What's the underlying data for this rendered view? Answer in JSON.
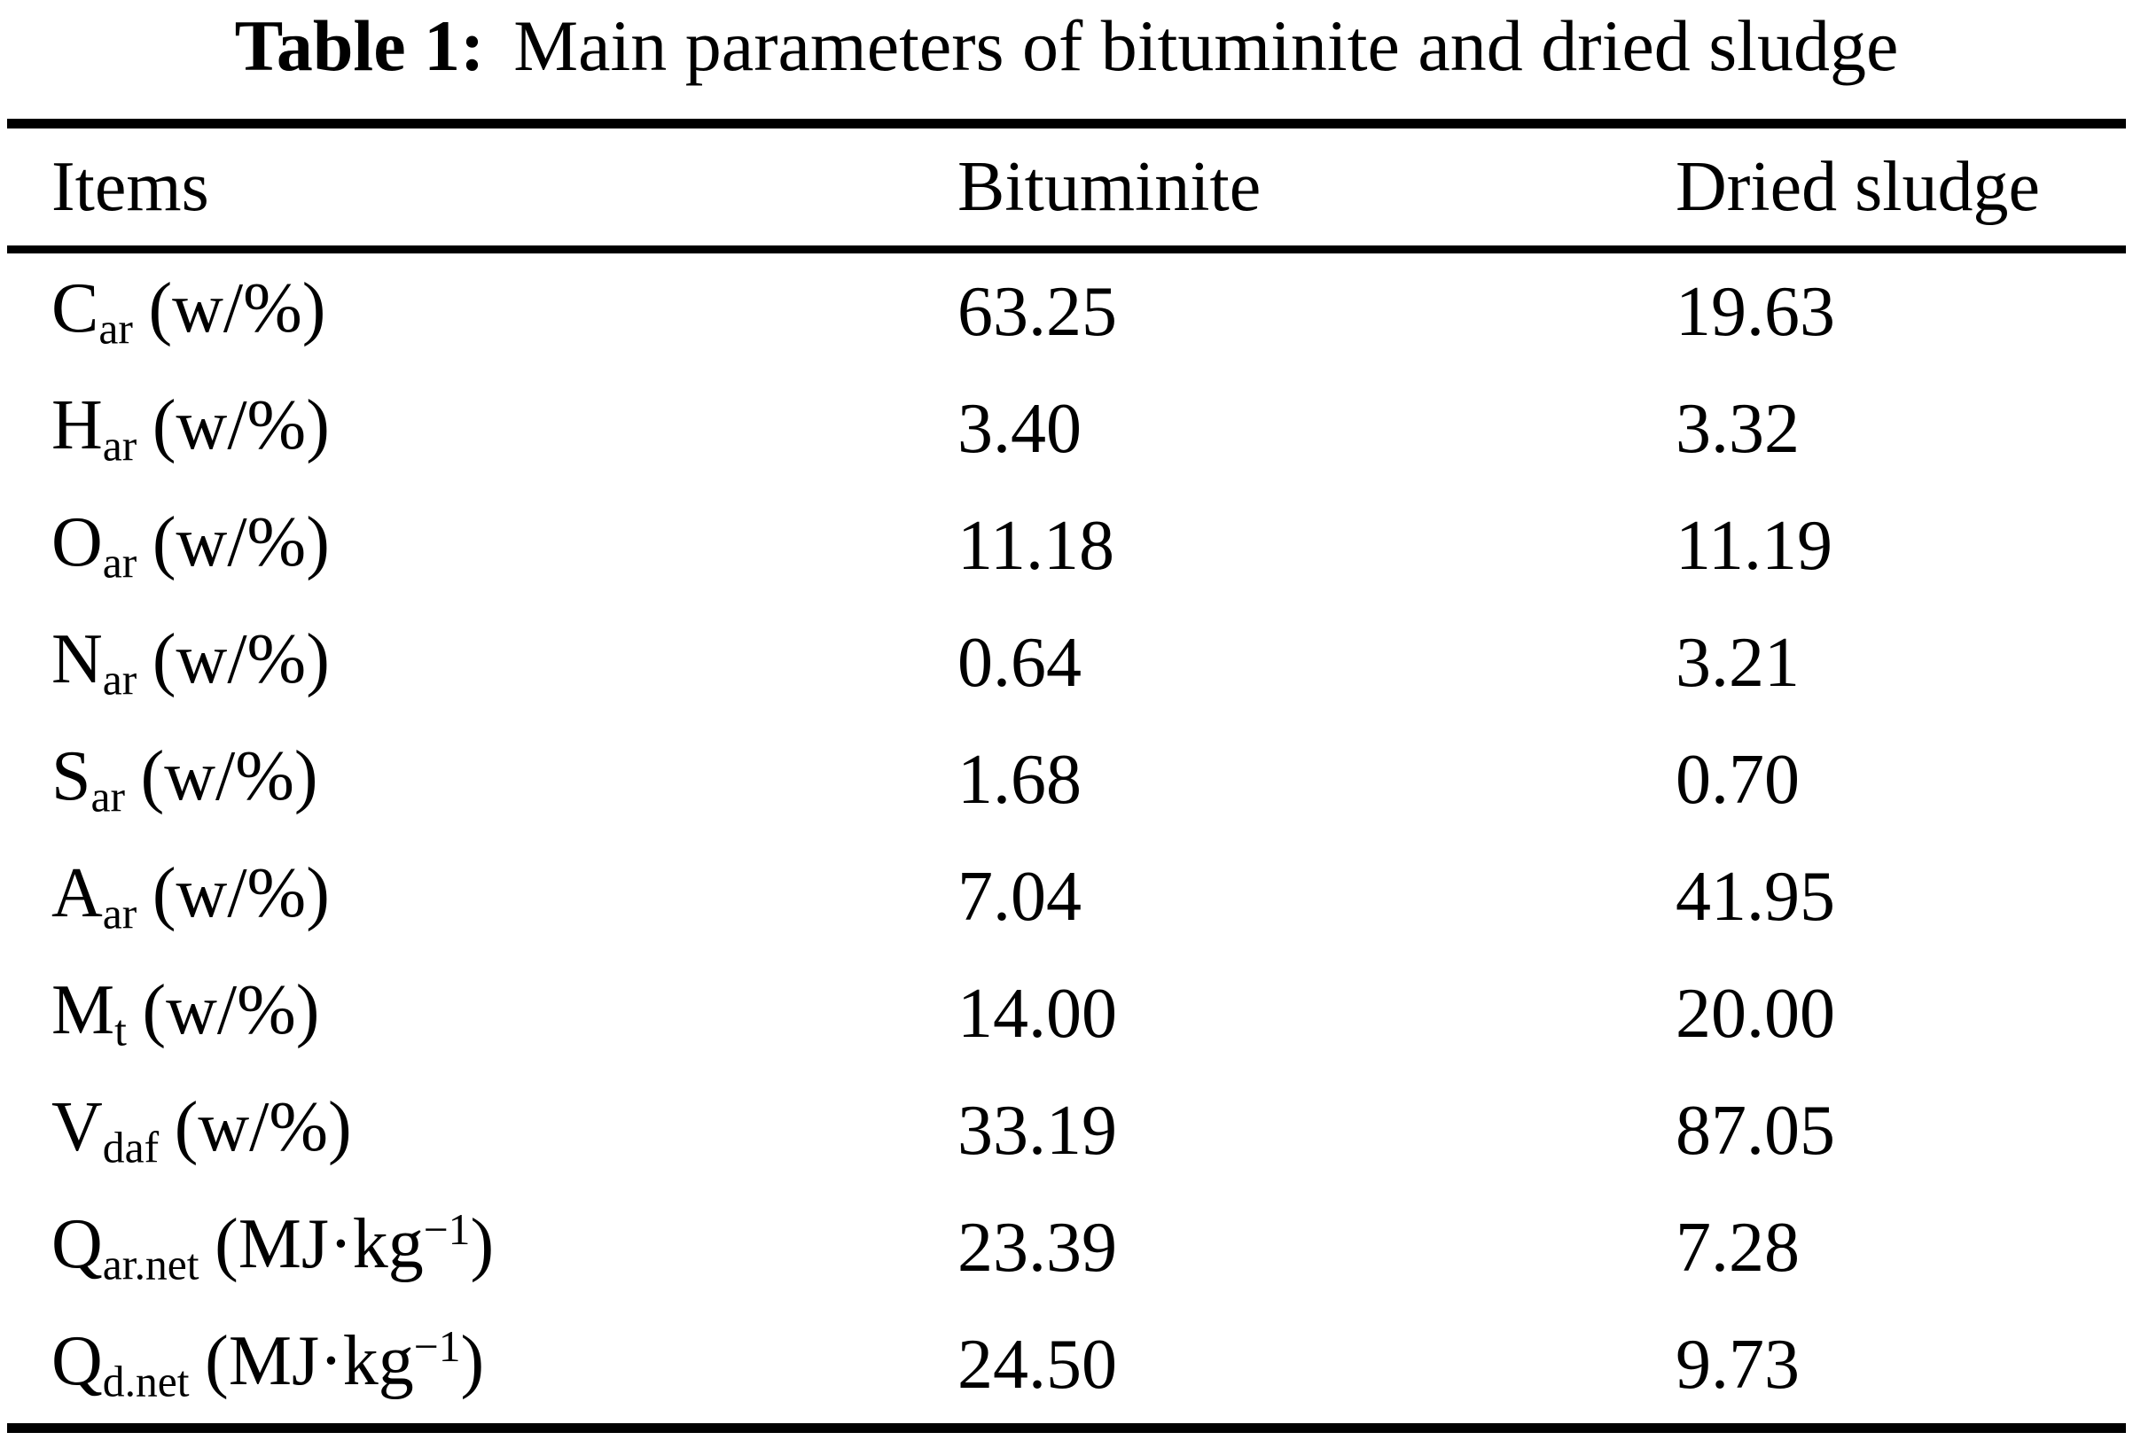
{
  "caption": {
    "label": "Table 1:",
    "text": "Main parameters of bituminite and dried sludge"
  },
  "table": {
    "headers": [
      "Items",
      "Bituminite",
      "Dried sludge"
    ],
    "rows": [
      {
        "sym": "C",
        "sub": "ar",
        "unit": "(w/%)",
        "usup": "",
        "uend": "",
        "bituminite": "63.25",
        "dried": "19.63"
      },
      {
        "sym": "H",
        "sub": "ar",
        "unit": "(w/%)",
        "usup": "",
        "uend": "",
        "bituminite": "3.40",
        "dried": "3.32"
      },
      {
        "sym": "O",
        "sub": "ar",
        "unit": "(w/%)",
        "usup": "",
        "uend": "",
        "bituminite": "11.18",
        "dried": "11.19"
      },
      {
        "sym": "N",
        "sub": "ar",
        "unit": "(w/%)",
        "usup": "",
        "uend": "",
        "bituminite": "0.64",
        "dried": "3.21"
      },
      {
        "sym": "S",
        "sub": "ar",
        "unit": "(w/%)",
        "usup": "",
        "uend": "",
        "bituminite": "1.68",
        "dried": "0.70"
      },
      {
        "sym": "A",
        "sub": "ar",
        "unit": "(w/%)",
        "usup": "",
        "uend": "",
        "bituminite": "7.04",
        "dried": "41.95"
      },
      {
        "sym": "M",
        "sub": "t",
        "unit": "(w/%)",
        "usup": "",
        "uend": "",
        "bituminite": "14.00",
        "dried": "20.00"
      },
      {
        "sym": "V",
        "sub": "daf",
        "unit": "(w/%)",
        "usup": "",
        "uend": "",
        "bituminite": "33.19",
        "dried": "87.05"
      },
      {
        "sym": "Q",
        "sub": "ar.net",
        "unit": "(MJ·kg",
        "usup": "−1",
        "uend": ")",
        "bituminite": "23.39",
        "dried": "7.28"
      },
      {
        "sym": "Q",
        "sub": "d.net",
        "unit": "(MJ·kg",
        "usup": "−1",
        "uend": ")",
        "bituminite": "24.50",
        "dried": "9.73"
      }
    ]
  }
}
